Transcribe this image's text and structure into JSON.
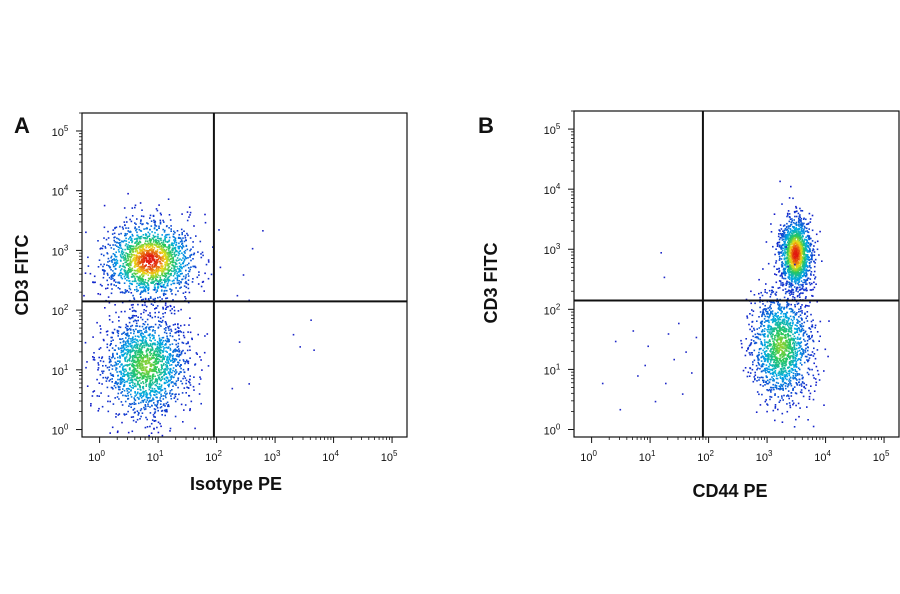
{
  "chart_data": [
    {
      "type": "scatter",
      "panel_label": "A",
      "xlabel": "Isotype PE",
      "ylabel": "CD3 FITC",
      "x_scale": "log",
      "y_scale": "log",
      "xlim": [
        0.5,
        180000
      ],
      "ylim": [
        0.75,
        200000
      ],
      "x_ticks": [
        {
          "value": 1,
          "base": "10",
          "exp": "0"
        },
        {
          "value": 10,
          "base": "10",
          "exp": "1"
        },
        {
          "value": 100,
          "base": "10",
          "exp": "2"
        },
        {
          "value": 1000,
          "base": "10",
          "exp": "3"
        },
        {
          "value": 10000,
          "base": "10",
          "exp": "4"
        },
        {
          "value": 100000,
          "base": "10",
          "exp": "5"
        }
      ],
      "y_ticks": [
        {
          "value": 1,
          "base": "10",
          "exp": "0"
        },
        {
          "value": 10,
          "base": "10",
          "exp": "1"
        },
        {
          "value": 100,
          "base": "10",
          "exp": "2"
        },
        {
          "value": 1000,
          "base": "10",
          "exp": "3"
        },
        {
          "value": 10000,
          "base": "10",
          "exp": "4"
        },
        {
          "value": 100000,
          "base": "10",
          "exp": "5"
        }
      ],
      "quadrant_gate": {
        "x": 90,
        "y": 140
      },
      "grid": false,
      "density_coloring": "blue-green-yellow-red",
      "populations": [
        {
          "x": 7,
          "y": 700,
          "sx": 0.38,
          "sy": 0.32,
          "n": 1700,
          "hot": "red"
        },
        {
          "x": 6,
          "y": 12,
          "sx": 0.36,
          "sy": 0.42,
          "n": 1700,
          "hot": "green"
        }
      ],
      "outliers": [
        [
          220,
          180
        ],
        [
          280,
          400
        ],
        [
          350,
          150
        ],
        [
          240,
          30
        ],
        [
          2000,
          40
        ],
        [
          2600,
          25
        ],
        [
          4000,
          70
        ],
        [
          4500,
          22
        ],
        [
          180,
          5
        ],
        [
          350,
          6
        ],
        [
          600,
          2200
        ],
        [
          400,
          1100
        ]
      ]
    },
    {
      "type": "scatter",
      "panel_label": "B",
      "xlabel": "CD44 PE",
      "ylabel": "CD3 FITC",
      "x_scale": "log",
      "y_scale": "log",
      "xlim": [
        0.5,
        180000
      ],
      "ylim": [
        0.75,
        200000
      ],
      "x_ticks": [
        {
          "value": 1,
          "base": "10",
          "exp": "0"
        },
        {
          "value": 10,
          "base": "10",
          "exp": "1"
        },
        {
          "value": 100,
          "base": "10",
          "exp": "2"
        },
        {
          "value": 1000,
          "base": "10",
          "exp": "3"
        },
        {
          "value": 10000,
          "base": "10",
          "exp": "4"
        },
        {
          "value": 100000,
          "base": "10",
          "exp": "5"
        }
      ],
      "y_ticks": [
        {
          "value": 1,
          "base": "10",
          "exp": "0"
        },
        {
          "value": 10,
          "base": "10",
          "exp": "1"
        },
        {
          "value": 100,
          "base": "10",
          "exp": "2"
        },
        {
          "value": 1000,
          "base": "10",
          "exp": "3"
        },
        {
          "value": 10000,
          "base": "10",
          "exp": "4"
        },
        {
          "value": 100000,
          "base": "10",
          "exp": "5"
        }
      ],
      "quadrant_gate": {
        "x": 80,
        "y": 140
      },
      "grid": false,
      "density_coloring": "blue-green-yellow-red",
      "populations": [
        {
          "x": 3000,
          "y": 850,
          "sx": 0.14,
          "sy": 0.3,
          "n": 1500,
          "hot": "red"
        },
        {
          "x": 1700,
          "y": 25,
          "sx": 0.26,
          "sy": 0.45,
          "n": 1500,
          "hot": "green"
        }
      ],
      "outliers": [
        [
          15,
          900
        ],
        [
          17,
          350
        ],
        [
          20,
          40
        ],
        [
          6,
          8
        ],
        [
          9,
          25
        ],
        [
          3,
          2.2
        ],
        [
          12,
          3
        ],
        [
          1.5,
          6
        ],
        [
          25,
          15
        ],
        [
          40,
          20
        ],
        [
          30,
          60
        ],
        [
          50,
          9
        ],
        [
          5,
          45
        ],
        [
          8,
          12
        ],
        [
          18,
          6
        ],
        [
          2.5,
          30
        ],
        [
          60,
          35
        ],
        [
          35,
          4
        ]
      ]
    }
  ]
}
